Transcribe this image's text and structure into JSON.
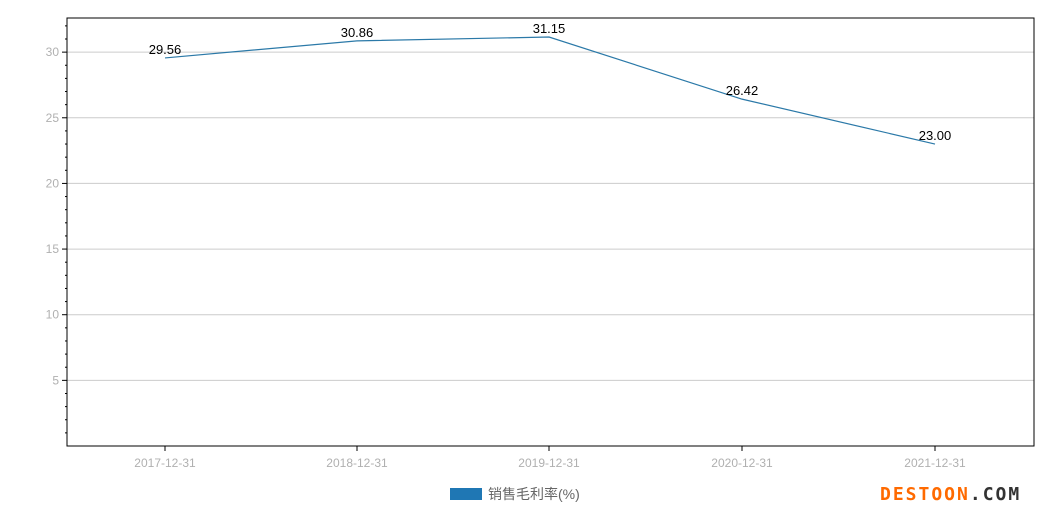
{
  "chart_data": {
    "type": "line",
    "categories": [
      "2017-12-31",
      "2018-12-31",
      "2019-12-31",
      "2020-12-31",
      "2021-12-31"
    ],
    "series": [
      {
        "name": "销售毛利率(%)",
        "values": [
          29.56,
          30.86,
          31.15,
          26.42,
          23.0
        ],
        "labels": [
          "29.56",
          "30.86",
          "31.15",
          "26.42",
          "23.00"
        ],
        "color": "#2b79a8"
      }
    ],
    "yticks": [
      "5",
      "10",
      "15",
      "20",
      "25",
      "30"
    ],
    "ylim": [
      0,
      32.6
    ],
    "grid": true,
    "legend_position": "bottom-center"
  },
  "legend": {
    "label": "销售毛利率(%)",
    "color": "#1f77b4"
  },
  "watermark": {
    "part1": "DESTOON",
    "part2": ".COM",
    "color1": "#ff6a00",
    "color2": "#333333"
  }
}
